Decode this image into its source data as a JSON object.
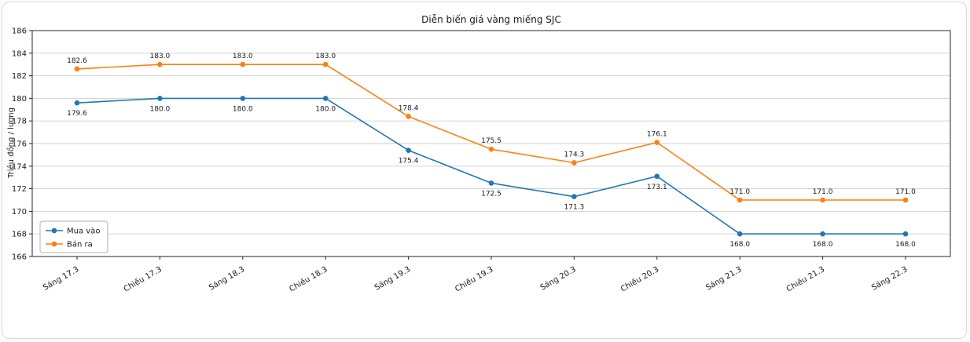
{
  "chart_data": {
    "type": "line",
    "title": "Diễn biến giá vàng miếng SJC",
    "xlabel": "",
    "ylabel": "Triệu đồng / lượng",
    "categories": [
      "Sáng 17.3",
      "Chiều 17.3",
      "Sáng 18.3",
      "Chiều 18.3",
      "Sáng 19.3",
      "Chiều 19.3",
      "Sáng 20.3",
      "Chiều 20.3",
      "Sáng 21.3",
      "Chiều 21.3",
      "Sáng 22.3"
    ],
    "series": [
      {
        "name": "Mua vào",
        "color": "#1f77b4",
        "values": [
          179.6,
          180.0,
          180.0,
          180.0,
          175.4,
          172.5,
          171.3,
          173.1,
          168.0,
          168.0,
          168.0
        ],
        "label_position": "below"
      },
      {
        "name": "Bán ra",
        "color": "#ff7f0e",
        "values": [
          182.6,
          183.0,
          183.0,
          183.0,
          178.4,
          175.5,
          174.3,
          176.1,
          171.0,
          171.0,
          171.0
        ],
        "label_position": "above"
      }
    ],
    "ylim": [
      166,
      186
    ],
    "yticks": [
      166,
      168,
      170,
      172,
      174,
      176,
      178,
      180,
      182,
      184,
      186
    ],
    "grid": "horizontal",
    "grid_color": "#cfcfcf",
    "legend_position": "lower-left",
    "marker": "circle"
  }
}
